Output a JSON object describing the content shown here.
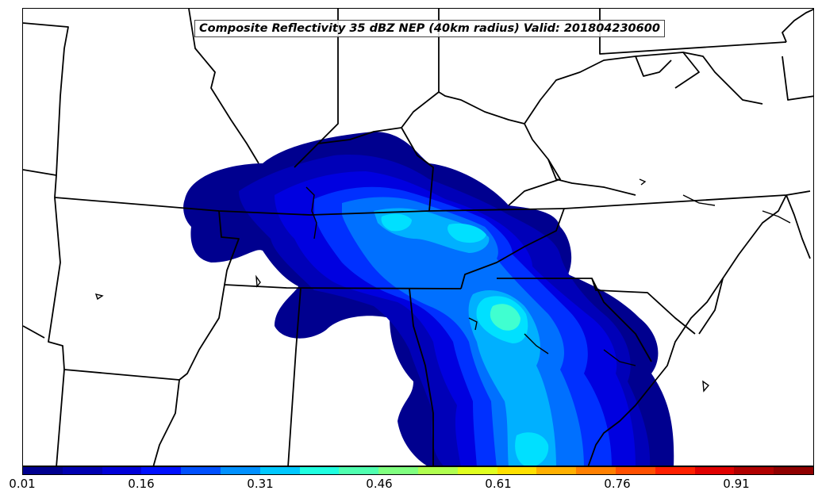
{
  "map": {
    "title": "Composite Reflectivity 35 dBZ NEP (40km radius) Valid: 201804230600"
  },
  "colorbar": {
    "tick_labels": [
      "0.01",
      "0.16",
      "0.31",
      "0.46",
      "0.61",
      "0.76",
      "0.91"
    ],
    "colors": [
      "#00008f",
      "#0000b0",
      "#0000d8",
      "#0010ff",
      "#0050ff",
      "#0090ff",
      "#00c8ff",
      "#20ffe0",
      "#50ffb0",
      "#80ff80",
      "#b0ff50",
      "#e0ff20",
      "#ffe000",
      "#ffb000",
      "#ff8000",
      "#ff5000",
      "#ff2000",
      "#e00000",
      "#b00000",
      "#8f0000"
    ]
  }
}
